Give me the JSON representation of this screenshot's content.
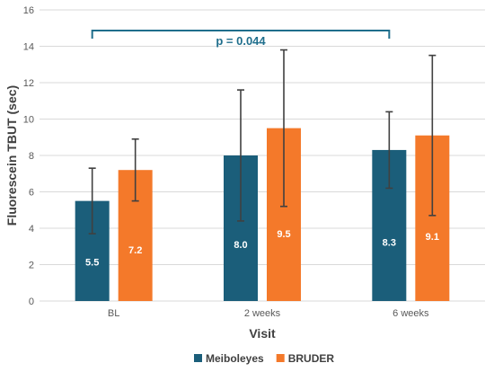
{
  "chart_data": {
    "type": "bar",
    "categories": [
      "BL",
      "2 weeks",
      "6 weeks"
    ],
    "series": [
      {
        "name": "Meiboleyes",
        "values": [
          5.5,
          8.0,
          8.3
        ],
        "error_low": [
          3.7,
          4.4,
          6.2
        ],
        "error_high": [
          7.3,
          11.6,
          10.4
        ],
        "color": "#1B5E7A"
      },
      {
        "name": "BRUDER",
        "values": [
          7.2,
          9.5,
          9.1
        ],
        "error_low": [
          5.5,
          5.2,
          4.7
        ],
        "error_high": [
          8.9,
          13.8,
          13.5
        ],
        "color": "#F4792A"
      }
    ],
    "data_labels": [
      [
        "5.5",
        "8.0",
        "8.3"
      ],
      [
        "7.2",
        "9.5",
        "9.1"
      ]
    ],
    "xlabel": "Visit",
    "ylabel": "Fluorescein TBUT (sec)",
    "ylim": [
      0,
      16
    ],
    "yticks": [
      0,
      2,
      4,
      6,
      8,
      10,
      12,
      14,
      16
    ],
    "grid": true,
    "legend": "bottom",
    "annotation": {
      "text": "p = 0.044",
      "from_category": "BL",
      "to_category": "6 weeks",
      "color": "#1F6E8C"
    },
    "error_bar_color": "#404040",
    "grid_color": "#D9D9D9"
  }
}
